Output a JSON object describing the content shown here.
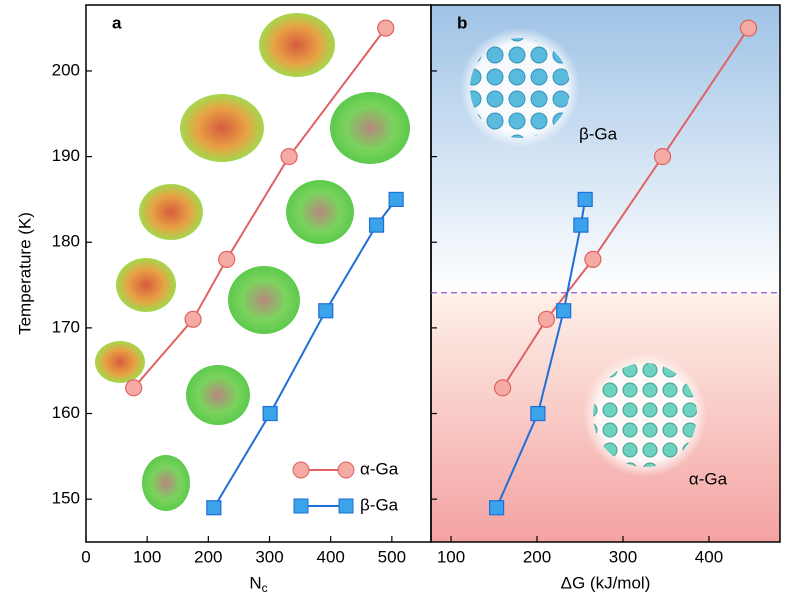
{
  "chart_data": [
    {
      "type": "line",
      "panel_label": "a",
      "ylabel": "Temperature (K)",
      "xlabel": "N",
      "xlabel_sub": "c",
      "xlim": [
        0,
        564
      ],
      "xticks": [
        0,
        100,
        200,
        300,
        400,
        500
      ],
      "ylim": [
        145,
        207.7
      ],
      "yticks": [
        150,
        160,
        170,
        180,
        190,
        200
      ],
      "legend": "lower right",
      "series": [
        {
          "name": "α-Ga",
          "color": "#e06262",
          "marker": "circle",
          "x": [
            78,
            175,
            230,
            332,
            490
          ],
          "values": [
            163,
            171,
            178,
            190,
            205
          ]
        },
        {
          "name": "β-Ga",
          "color": "#1f6fd8",
          "marker": "square",
          "x": [
            209,
            301,
            392,
            475,
            507
          ],
          "values": [
            149,
            160,
            172,
            182,
            185
          ]
        }
      ]
    },
    {
      "type": "line",
      "panel_label": "b",
      "xlabel": "ΔG (kJ/mol)",
      "xlim": [
        76.7,
        482.6
      ],
      "xticks": [
        100,
        200,
        300,
        400
      ],
      "ylim": [
        145,
        207.7
      ],
      "yticks": [
        150,
        160,
        170,
        180,
        190,
        200
      ],
      "hline": 174.1,
      "annotations": [
        "β-Ga",
        "α-Ga"
      ],
      "series": [
        {
          "name": "α-Ga",
          "color": "#e06262",
          "marker": "circle",
          "x": [
            160,
            211,
            265,
            346,
            446
          ],
          "values": [
            163,
            171,
            178,
            190,
            205
          ]
        },
        {
          "name": "β-Ga",
          "color": "#1f6fd8",
          "marker": "square",
          "x": [
            153,
            201,
            231,
            251,
            256
          ],
          "values": [
            149,
            160,
            172,
            182,
            185
          ]
        }
      ]
    }
  ]
}
